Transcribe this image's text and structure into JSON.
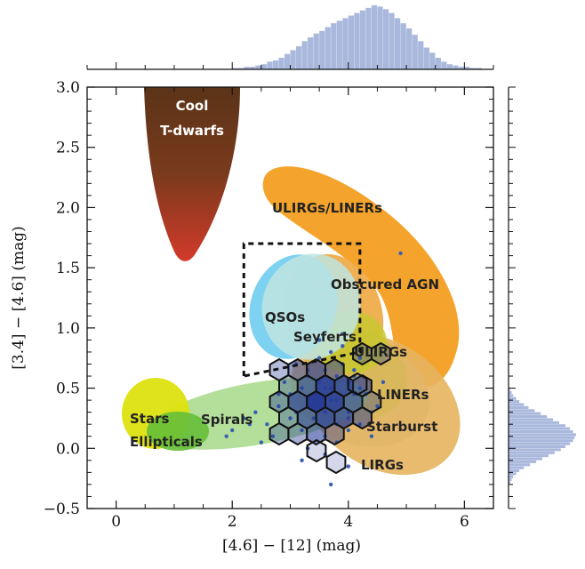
{
  "chart_data": {
    "type": "scatter",
    "title": "",
    "xlabel": "[4.6] − [12] (mag)",
    "ylabel": "[3.4] − [4.6] (mag)",
    "xlim": [
      -0.5,
      6.5
    ],
    "ylim": [
      -0.5,
      3.0
    ],
    "x_ticks": [
      "0",
      "2",
      "4",
      "6"
    ],
    "y_ticks": [
      "−0.5",
      "0.0",
      "0.5",
      "1.0",
      "1.5",
      "2.0",
      "2.5",
      "3.0"
    ],
    "grid": false,
    "regions": [
      {
        "label": "Cool\nT-dwarfs",
        "color": "#7a3a1c"
      },
      {
        "label": "ULIRGs/LINERs",
        "color": "#f39c1a"
      },
      {
        "label": "Obscured AGN",
        "color": "#eea842"
      },
      {
        "label": "QSOs",
        "color": "#6fcdf0"
      },
      {
        "label": "Seyferts",
        "color": "#bfe5e2"
      },
      {
        "label": "ULIRGs",
        "color": "#c8c830"
      },
      {
        "label": "LINERs",
        "color": "#d7b85a"
      },
      {
        "label": "Starburst",
        "color": "#e2b66a"
      },
      {
        "label": "LIRGs",
        "color": "#e6b45e"
      },
      {
        "label": "Spirals",
        "color": "#a6d98a"
      },
      {
        "label": "Stars",
        "color": "#dde20f"
      },
      {
        "label": "Ellipticals",
        "color": "#66bf3a"
      }
    ],
    "selection_box": {
      "x": [
        2.2,
        4.2
      ],
      "y_top": 1.7,
      "y_bottom_left": 0.6,
      "y_bottom_right": 0.8
    },
    "points": {
      "color": "#3a5fb0",
      "x": [
        2.6,
        2.8,
        3.0,
        3.1,
        3.2,
        3.3,
        3.4,
        3.5,
        3.6,
        3.7,
        3.8,
        3.9,
        4.0,
        4.1,
        4.2,
        3.2,
        3.4,
        3.6,
        3.8,
        4.0,
        2.9,
        3.1,
        3.5,
        3.7,
        3.9,
        4.1,
        4.3,
        4.4,
        2.5,
        2.7,
        3.3,
        3.6,
        3.8,
        4.0,
        4.2,
        4.5,
        3.0,
        3.4,
        3.7,
        4.1,
        2.4,
        2.2,
        1.9,
        2.0,
        2.3,
        3.5,
        3.9,
        4.2,
        4.6,
        4.9,
        3.6,
        3.8,
        4.0,
        3.7,
        3.2,
        2.8,
        4.4,
        4.0,
        3.6,
        3.3
      ],
      "y": [
        0.2,
        0.35,
        0.45,
        0.3,
        0.5,
        0.6,
        0.4,
        0.55,
        0.65,
        0.5,
        0.6,
        0.7,
        0.55,
        0.45,
        0.5,
        0.15,
        0.25,
        0.1,
        0.2,
        0.3,
        0.55,
        0.7,
        0.75,
        0.8,
        0.85,
        0.6,
        0.45,
        0.3,
        0.05,
        0.1,
        0.0,
        -0.05,
        0.05,
        0.15,
        0.2,
        0.35,
        0.25,
        0.35,
        0.4,
        0.65,
        0.3,
        0.25,
        0.1,
        0.15,
        0.2,
        0.9,
        0.95,
        0.75,
        0.55,
        1.62,
        0.3,
        0.4,
        0.25,
        -0.3,
        -0.1,
        0.45,
        0.1,
        -0.15,
        0.5,
        0.65
      ]
    },
    "hexbin_counts": [
      [
        3,
        5,
        7,
        5
      ],
      [
        4,
        8,
        10,
        9,
        6
      ],
      [
        5,
        9,
        12,
        11,
        8,
        4
      ],
      [
        4,
        8,
        11,
        10,
        7
      ],
      [
        3,
        6,
        8,
        6
      ],
      [
        2,
        3
      ]
    ],
    "marginal_x": {
      "color": "#a9b8dc",
      "bin_start": 2.0,
      "bin_width": 0.1,
      "counts": [
        1,
        1,
        2,
        2,
        3,
        4,
        6,
        7,
        9,
        12,
        15,
        18,
        22,
        25,
        28,
        30,
        33,
        36,
        38,
        40,
        42,
        44,
        46,
        48,
        50,
        49,
        47,
        44,
        40,
        36,
        32,
        27,
        22,
        17,
        13,
        9,
        6,
        4,
        3,
        2,
        2,
        1,
        1
      ]
    },
    "marginal_y": {
      "color": "#a9b8dc",
      "bin_start": -0.3,
      "bin_width": 0.025,
      "counts": [
        1,
        2,
        3,
        5,
        7,
        10,
        14,
        18,
        22,
        26,
        30,
        34,
        37,
        40,
        42,
        43,
        44,
        42,
        40,
        37,
        33,
        29,
        25,
        21,
        17,
        13,
        10,
        7,
        5,
        3,
        2,
        1
      ]
    }
  }
}
